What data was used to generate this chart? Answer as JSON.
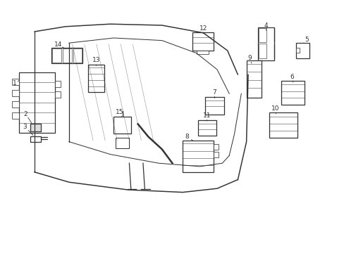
{
  "bg_color": "#ffffff",
  "line_color": "#333333",
  "lw": 0.9,
  "fig_width": 4.89,
  "fig_height": 3.6,
  "dpi": 100
}
